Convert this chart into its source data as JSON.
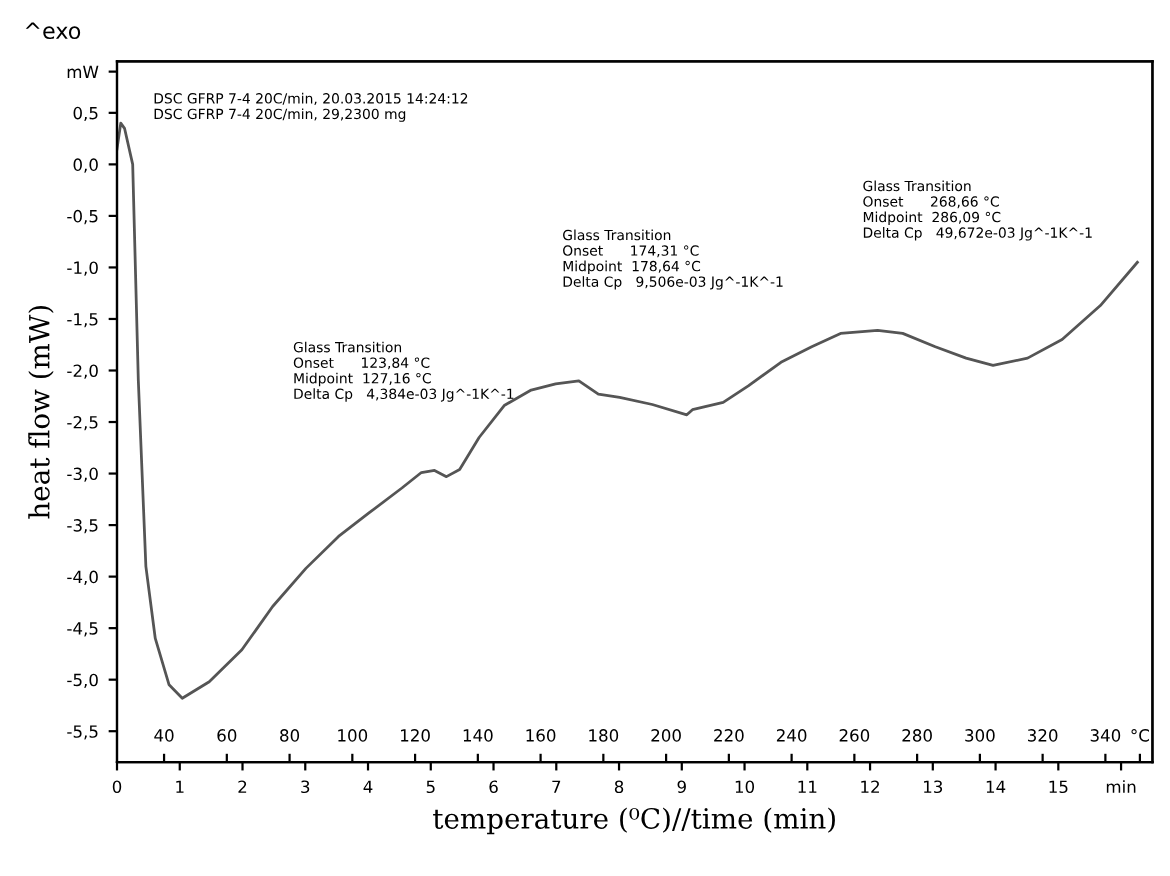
{
  "chart_data": {
    "type": "line",
    "xlabel": "temperature (⁰C)//time (min)",
    "ylabel": "heat flow (mW)",
    "x": [
      0.0,
      0.06,
      0.12,
      0.25,
      0.34,
      0.46,
      0.61,
      0.83,
      1.04,
      1.47,
      1.99,
      2.48,
      3.01,
      3.53,
      4.02,
      4.54,
      4.85,
      5.06,
      5.25,
      5.46,
      5.77,
      6.17,
      6.6,
      6.99,
      7.36,
      7.67,
      8.01,
      8.53,
      9.08,
      9.17,
      9.66,
      10.06,
      10.58,
      11.07,
      11.53,
      12.12,
      12.52,
      13.04,
      13.53,
      13.96,
      14.51,
      15.06,
      15.67,
      16.26
    ],
    "series": [
      {
        "color": "#555555",
        "values": [
          0.15,
          0.4,
          0.35,
          0.0,
          -2.1,
          -3.9,
          -4.6,
          -5.05,
          -5.18,
          -5.02,
          -4.71,
          -4.29,
          -3.92,
          -3.61,
          -3.38,
          -3.14,
          -2.99,
          -2.97,
          -3.03,
          -2.96,
          -2.65,
          -2.34,
          -2.19,
          -2.13,
          -2.1,
          -2.23,
          -2.26,
          -2.33,
          -2.43,
          -2.38,
          -2.31,
          -2.15,
          -1.92,
          -1.77,
          -1.64,
          -1.61,
          -1.64,
          -1.77,
          -1.88,
          -1.95,
          -1.88,
          -1.7,
          -1.37,
          -0.95
        ]
      }
    ],
    "xlim": [
      0,
      16.5
    ],
    "xticks": [
      0,
      1,
      2,
      3,
      4,
      5,
      6,
      7,
      8,
      9,
      10,
      11,
      12,
      13,
      14,
      15,
      {
        "value": 16,
        "label": "min"
      }
    ],
    "x2lim": [
      25,
      355
    ],
    "x2ticks": [
      40,
      60,
      80,
      100,
      120,
      140,
      160,
      180,
      200,
      220,
      240,
      260,
      280,
      300,
      320,
      340,
      {
        "value": 351,
        "label": "°C"
      }
    ],
    "ylim": [
      -5.8,
      1.0
    ],
    "yticks": [
      {
        "value": 0.5,
        "label": "0,5"
      },
      {
        "value": 0.0,
        "label": "0,0"
      },
      {
        "value": -0.5,
        "label": "-0,5"
      },
      {
        "value": -1.0,
        "label": "-1,0"
      },
      {
        "value": -1.5,
        "label": "-1,5"
      },
      {
        "value": -2.0,
        "label": "-2,0"
      },
      {
        "value": -2.5,
        "label": "-2,5"
      },
      {
        "value": -3.0,
        "label": "-3,0"
      },
      {
        "value": -3.5,
        "label": "-3,5"
      },
      {
        "value": -4.0,
        "label": "-4,0"
      },
      {
        "value": -4.5,
        "label": "-4,5"
      },
      {
        "value": -5.0,
        "label": "-5,0"
      },
      {
        "value": -5.5,
        "label": "-5,5"
      },
      {
        "value": 0.9,
        "label": "mW"
      }
    ],
    "grid": false,
    "legend": false,
    "annotations": [
      "^exo",
      "DSC GFRP 7-4 20C/min, 20.03.2015 14:24:12\nDSC GFRP 7-4 20C/min, 29,2300 mg",
      "Glass Transition\nOnset      123,84 °C\nMidpoint  127,16 °C\nDelta Cp   4,384e-03 Jg^-1K^-1",
      "Glass Transition\nOnset      174,31 °C\nMidpoint  178,64 °C\nDelta Cp   9,506e-03 Jg^-1K^-1",
      "Glass Transition\nOnset      268,66 °C\nMidpoint  286,09 °C\nDelta Cp   49,672e-03 Jg^-1K^-1"
    ]
  }
}
